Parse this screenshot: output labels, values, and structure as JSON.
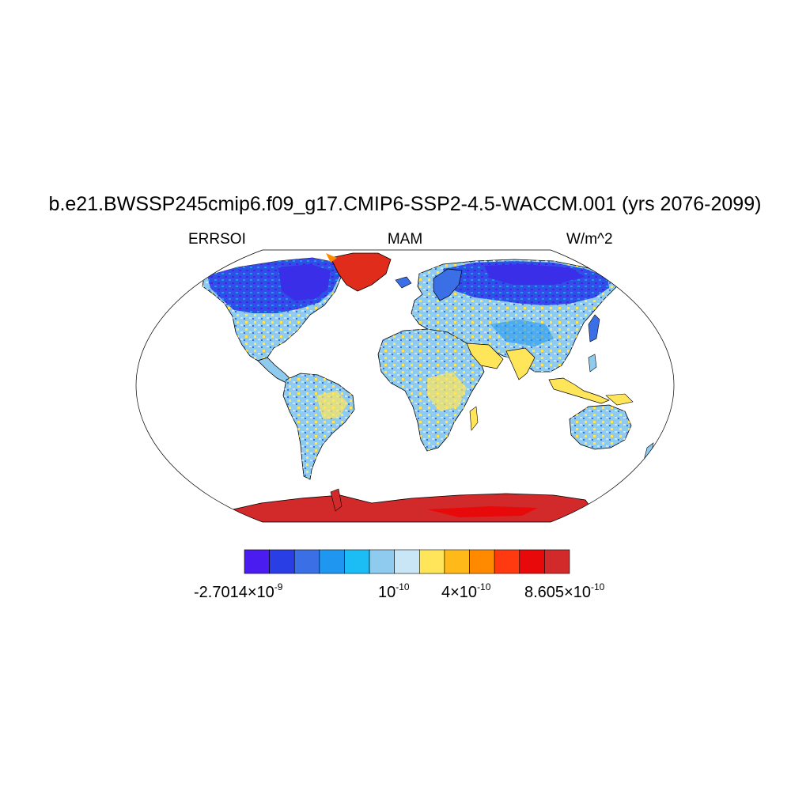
{
  "title": "b.e21.BWSSP245cmip6.f09_g17.CMIP6-SSP2-4.5-WACCM.001 (yrs 2076-2099)",
  "left_string": "ERRSOI",
  "center_string": "MAM",
  "right_string": "W/m^2",
  "colorbar": {
    "colors": [
      "#4a1cf0",
      "#2a3ee6",
      "#3b6fe6",
      "#1f97f0",
      "#1cbcf5",
      "#8ecbee",
      "#c8e6f5",
      "#ffe55a",
      "#ffba19",
      "#ff8a00",
      "#ff3a10",
      "#e80a0a",
      "#d22a2a"
    ],
    "labels": [
      {
        "mantissa": "-2.7014×10",
        "exponent": "-9"
      },
      {
        "mantissa": "10",
        "exponent": "-10"
      },
      {
        "mantissa": "4×10",
        "exponent": "-10"
      },
      {
        "mantissa": "8.605×10",
        "exponent": "-10"
      }
    ]
  },
  "map": {
    "projection": "Robinson",
    "ocean_color": "#ffffff",
    "coastline_color": "#000000",
    "regions": {
      "greenland": "#e02c1a",
      "antarctica": "#d22a2a",
      "canada": "#3b2ee8",
      "siberia": "#2f4fe6",
      "land_general": "#8ecbee"
    }
  }
}
